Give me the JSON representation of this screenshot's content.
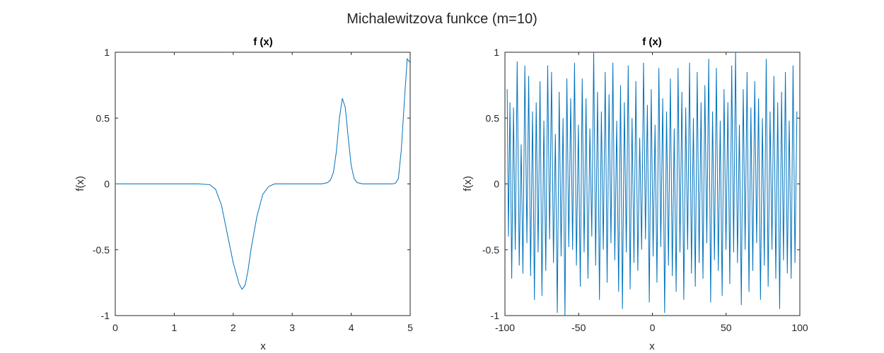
{
  "figure": {
    "title": "Michalewitzova funkce (m=10)"
  },
  "colors": {
    "line": "#0072BD",
    "axes": "#262626"
  },
  "chart_data": [
    {
      "type": "line",
      "title": "f (x)",
      "xlabel": "x",
      "ylabel": "f(x)",
      "xlim": [
        0,
        5
      ],
      "ylim": [
        -1,
        1
      ],
      "xticks": [
        "0",
        "1",
        "2",
        "3",
        "4",
        "5"
      ],
      "yticks": [
        "-1",
        "-0.5",
        "0",
        "0.5",
        "1"
      ],
      "grid": false,
      "series": [
        {
          "x": [
            0,
            0.5,
            1.0,
            1.4,
            1.6,
            1.7,
            1.8,
            1.9,
            2.0,
            2.1,
            2.15,
            2.2,
            2.25,
            2.3,
            2.4,
            2.5,
            2.6,
            2.7,
            2.8,
            3.0,
            3.3,
            3.5,
            3.6,
            3.65,
            3.7,
            3.75,
            3.8,
            3.85,
            3.9,
            3.95,
            4.0,
            4.05,
            4.1,
            4.2,
            4.4,
            4.6,
            4.7,
            4.75,
            4.8,
            4.85,
            4.9,
            4.95,
            5.0
          ],
          "y": [
            0,
            0,
            0,
            0,
            -0.005,
            -0.04,
            -0.16,
            -0.38,
            -0.6,
            -0.76,
            -0.8,
            -0.77,
            -0.66,
            -0.5,
            -0.25,
            -0.08,
            -0.02,
            0,
            0,
            0,
            0,
            0,
            0.01,
            0.03,
            0.09,
            0.25,
            0.5,
            0.65,
            0.58,
            0.35,
            0.14,
            0.04,
            0.01,
            0,
            0,
            0,
            0,
            0.005,
            0.04,
            0.26,
            0.62,
            0.95,
            0.92
          ]
        }
      ]
    },
    {
      "type": "line",
      "title": "f (x)",
      "xlabel": "x",
      "ylabel": "f(x)",
      "xlim": [
        -100,
        100
      ],
      "ylim": [
        -1,
        1
      ],
      "xticks": [
        "-100",
        "-50",
        "0",
        "50",
        "100"
      ],
      "yticks": [
        "-1",
        "-0.5",
        "0",
        "0.5",
        "1"
      ],
      "grid": false,
      "series": [
        {
          "x": [
            -98.5,
            -97.6,
            -96.6,
            -95.4,
            -94.2,
            -93.0,
            -91.7,
            -90.3,
            -89.0,
            -87.8,
            -86.5,
            -85.1,
            -83.9,
            -82.6,
            -81.3,
            -80.0,
            -78.8,
            -77.5,
            -76.2,
            -74.9,
            -73.6,
            -72.3,
            -71.0,
            -69.7,
            -68.4,
            -67.1,
            -65.8,
            -64.5,
            -63.2,
            -61.9,
            -60.6,
            -59.3,
            -58.0,
            -56.7,
            -55.4,
            -54.1,
            -52.8,
            -51.5,
            -50.2,
            -48.9,
            -47.6,
            -46.3,
            -45.0,
            -43.7,
            -42.4,
            -41.1,
            -39.8,
            -38.5,
            -37.2,
            -35.9,
            -34.6,
            -33.3,
            -32.0,
            -30.7,
            -29.4,
            -28.1,
            -26.8,
            -25.5,
            -24.2,
            -22.9,
            -21.6,
            -20.3,
            -19.0,
            -17.7,
            -16.4,
            -15.1,
            -13.8,
            -12.5,
            -11.2,
            -9.9,
            -8.6,
            -7.3,
            -6.0,
            -4.7,
            -3.4,
            -2.1,
            -0.8,
            0.5,
            1.8,
            3.1,
            4.4,
            5.7,
            7.0,
            8.3,
            9.6,
            10.9,
            12.2,
            13.5,
            14.8,
            16.1,
            17.4,
            18.7,
            20.0,
            21.3,
            22.6,
            23.9,
            25.2,
            26.5,
            27.8,
            29.1,
            30.4,
            31.7,
            33.0,
            34.3,
            35.6,
            36.9,
            38.2,
            39.5,
            40.8,
            42.1,
            43.4,
            44.7,
            46.0,
            47.3,
            48.6,
            49.9,
            51.2,
            52.5,
            53.8,
            55.1,
            56.4,
            57.7,
            59.0,
            60.3,
            61.6,
            62.9,
            64.2,
            65.5,
            66.8,
            68.1,
            69.4,
            70.7,
            72.0,
            73.3,
            74.6,
            75.9,
            77.2,
            78.5,
            79.8,
            81.1,
            82.4,
            83.7,
            85.0,
            86.3,
            87.6,
            88.9,
            90.2,
            91.5,
            92.8,
            94.1,
            95.4,
            96.7,
            98.0
          ],
          "y": [
            0.72,
            -0.4,
            0.62,
            -0.72,
            0.58,
            -0.5,
            0.93,
            -0.62,
            0.3,
            -0.68,
            0.9,
            -0.45,
            0.82,
            -0.7,
            0.55,
            -0.88,
            0.62,
            -0.52,
            0.78,
            -0.85,
            0.48,
            -0.66,
            0.9,
            -0.42,
            0.85,
            -0.6,
            0.38,
            -0.98,
            0.7,
            -0.55,
            0.5,
            -1.0,
            0.8,
            -0.48,
            0.65,
            -0.5,
            0.92,
            -0.62,
            0.45,
            -0.78,
            0.8,
            -0.52,
            0.65,
            -0.72,
            0.42,
            -0.4,
            1.0,
            -0.62,
            0.7,
            -0.88,
            0.55,
            -0.5,
            0.85,
            -0.75,
            0.68,
            -0.45,
            0.92,
            -0.58,
            0.48,
            -0.82,
            0.75,
            -0.95,
            0.62,
            -0.52,
            0.9,
            -0.8,
            0.5,
            -0.6,
            0.78,
            -0.66,
            0.35,
            -0.5,
            0.92,
            -0.42,
            0.6,
            -0.9,
            0.72,
            -0.55,
            0.45,
            -0.75,
            0.88,
            -0.48,
            0.65,
            -0.98,
            0.55,
            -0.62,
            0.8,
            -0.7,
            0.42,
            -0.82,
            0.88,
            -0.52,
            0.7,
            -0.88,
            0.58,
            -0.5,
            0.92,
            -0.68,
            0.5,
            -0.78,
            0.85,
            -0.6,
            0.62,
            -0.72,
            0.75,
            -0.45,
            0.95,
            -0.9,
            0.55,
            -0.58,
            0.88,
            -0.66,
            0.48,
            -0.85,
            0.72,
            -0.5,
            0.62,
            -0.76,
            0.9,
            -0.52,
            1.0,
            -0.6,
            0.45,
            -0.92,
            0.72,
            -0.5,
            0.85,
            -0.82,
            0.58,
            -0.66,
            0.78,
            -0.45,
            0.65,
            -0.88,
            0.5,
            -0.62,
            0.95,
            -0.78,
            0.55,
            -0.5,
            0.82,
            -0.72,
            0.62,
            -0.95,
            0.7,
            -0.58,
            0.85,
            -0.68,
            0.48,
            -0.72,
            0.9,
            -0.6,
            0.55
          ]
        }
      ]
    }
  ]
}
